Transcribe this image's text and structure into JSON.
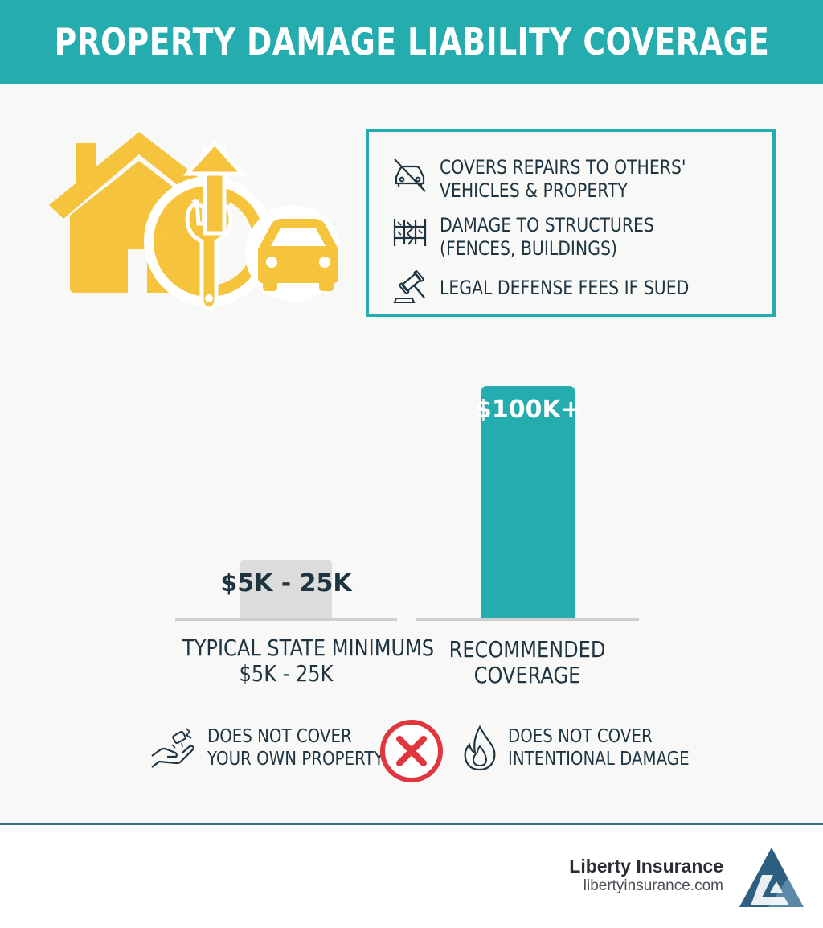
{
  "header": {
    "title": "PROPERTY DAMAGE LIABILITY COVERAGE"
  },
  "features": [
    {
      "line1": "COVERS REPAIRS TO OTHERS'",
      "line2": "VEHICLES & PROPERTY",
      "icon": "car-crossed-icon"
    },
    {
      "line1": "DAMAGE TO STRUCTURES",
      "line2": "(FENCES, BUILDINGS)",
      "icon": "fence-icon"
    },
    {
      "line1": "LEGAL DEFENSE FEES IF SUED",
      "line2": "",
      "icon": "gavel-icon"
    }
  ],
  "chart_data": {
    "type": "bar",
    "categories": [
      "TYPICAL STATE MINIMUMS $5K - 25K",
      "RECOMMENDED COVERAGE"
    ],
    "category_lines": [
      [
        "TYPICAL STATE MINIMUMS",
        "$5K - 25K"
      ],
      [
        "RECOMMENDED",
        "COVERAGE"
      ]
    ],
    "values": [
      25000,
      100000
    ],
    "data_labels": [
      "$5K - 25K",
      "$100K+"
    ],
    "bar_colors": [
      "#dcdcdc",
      "#24acae"
    ],
    "label_colors": [
      "#1e3440",
      "#ffffff"
    ],
    "ylim": [
      0,
      100000
    ],
    "grid": false
  },
  "exclusions": [
    {
      "line1": "DOES NOT COVER",
      "line2": "YOUR OWN PROPERTY",
      "icon": "hand-property-icon"
    },
    {
      "line1": "DOES NOT COVER",
      "line2": "INTENTIONAL DAMAGE",
      "icon": "fire-icon"
    }
  ],
  "colors": {
    "accent": "#24acae",
    "hero": "#f5c43c",
    "deny": "#e0373f",
    "text": "#1e3440"
  },
  "brand": {
    "name": "Liberty Insurance",
    "url": "libertyinsurance.com",
    "logo": "triangle-logo-icon"
  }
}
